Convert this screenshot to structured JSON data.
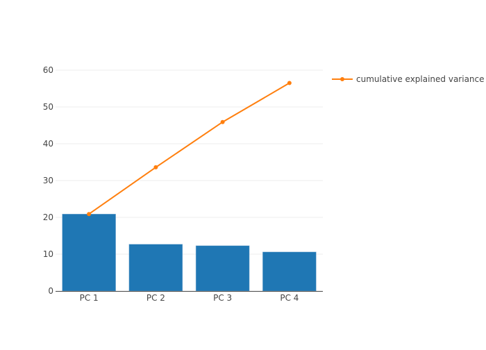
{
  "chart_data": {
    "type": "bar+line",
    "categories": [
      "PC 1",
      "PC 2",
      "PC 3",
      "PC 4"
    ],
    "series": [
      {
        "type": "bar",
        "values": [
          20.9,
          12.7,
          12.3,
          10.6
        ],
        "color": "#1f77b4"
      },
      {
        "type": "line",
        "name": "cumulative explained variance",
        "values": [
          20.9,
          33.6,
          45.9,
          56.5
        ],
        "color": "#ff7f0e"
      }
    ],
    "yticks": [
      "0",
      "10",
      "20",
      "30",
      "40",
      "50",
      "60"
    ],
    "ylim": [
      0,
      60
    ],
    "grid": true,
    "legend_position": "top-right"
  }
}
